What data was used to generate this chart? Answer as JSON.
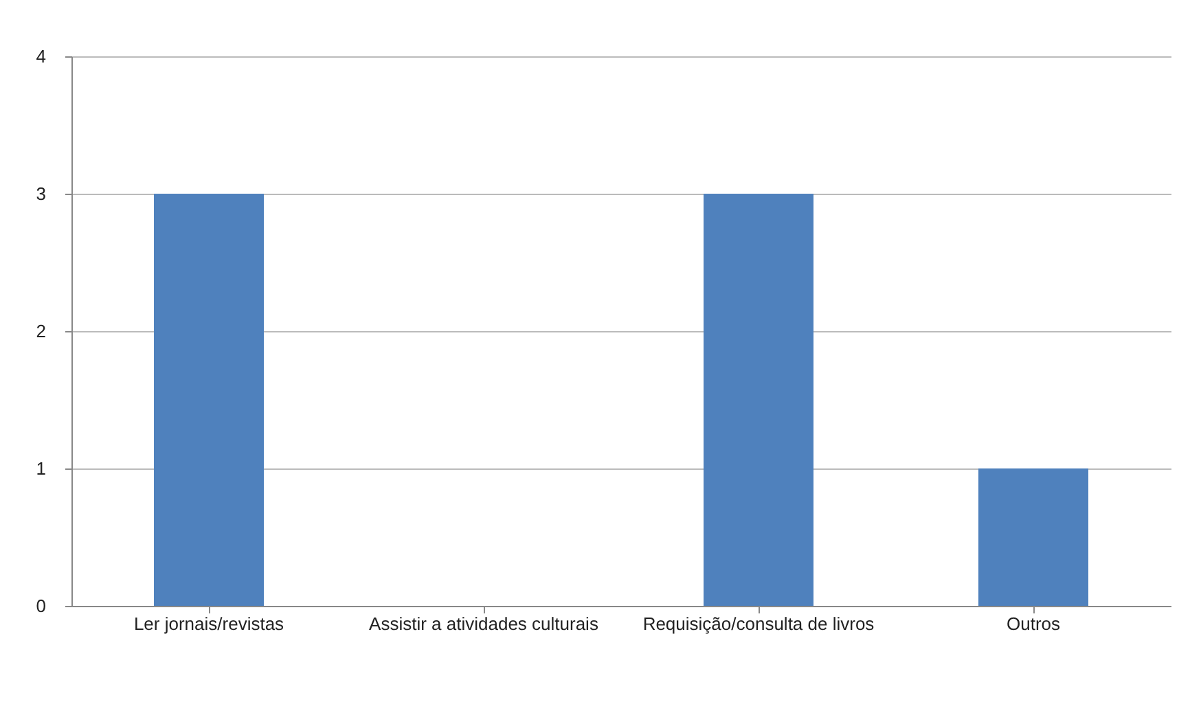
{
  "chart_data": {
    "type": "bar",
    "categories": [
      "Ler jornais/revistas",
      "Assistir a atividades culturais",
      "Requisição/consulta de livros",
      "Outros"
    ],
    "values": [
      3,
      0,
      3,
      1
    ],
    "color": "#4f81bd",
    "ylim": [
      0,
      4
    ],
    "yticks": [
      0,
      1,
      2,
      3,
      4
    ],
    "grid": "y"
  }
}
